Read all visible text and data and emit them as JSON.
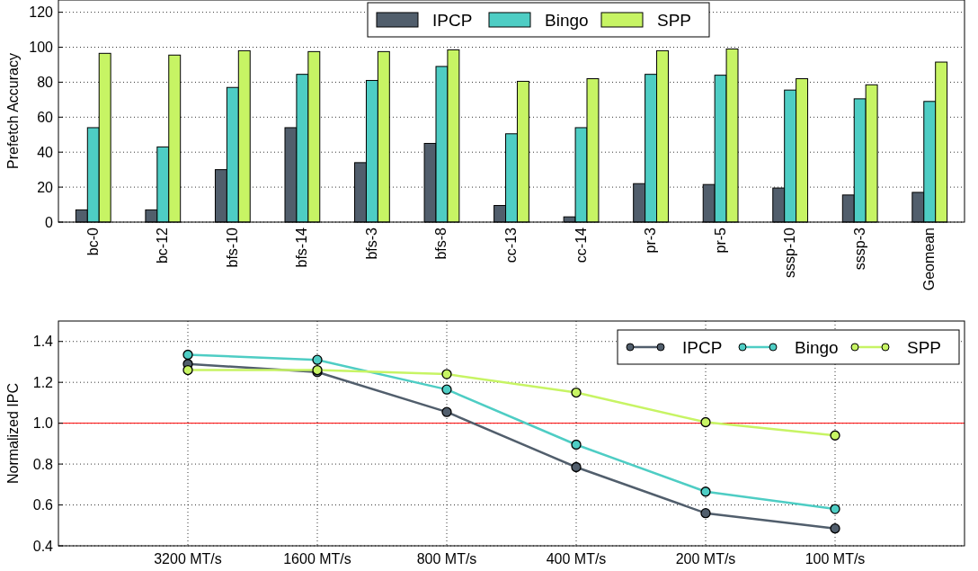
{
  "chart_data": [
    {
      "type": "bar",
      "ylabel": "Prefetch Accuracy",
      "categories": [
        "bc-0",
        "bc-12",
        "bfs-10",
        "bfs-14",
        "bfs-3",
        "bfs-8",
        "cc-13",
        "cc-14",
        "pr-3",
        "pr-5",
        "sssp-10",
        "sssp-3",
        "Geomean"
      ],
      "series": [
        {
          "name": "IPCP",
          "color": "#515e6c",
          "values": [
            7,
            7,
            30,
            54,
            34,
            45,
            9.5,
            3,
            22,
            21.5,
            19.5,
            15.5,
            17
          ]
        },
        {
          "name": "Bingo",
          "color": "#4ecdc4",
          "values": [
            54,
            43,
            77,
            84.5,
            81,
            89,
            50.5,
            54,
            84.5,
            84,
            75.5,
            70.5,
            69
          ]
        },
        {
          "name": "SPP",
          "color": "#c7f464",
          "values": [
            96.5,
            95.5,
            98,
            97.5,
            97.5,
            98.5,
            80.5,
            82,
            98,
            99,
            82,
            78.5,
            91.5
          ]
        }
      ],
      "ylim": [
        0,
        127
      ],
      "yticks": [
        0,
        20,
        40,
        60,
        80,
        100,
        120
      ],
      "grid": "y",
      "legend": "top"
    },
    {
      "type": "line",
      "ylabel": "Normalized IPC",
      "categories": [
        "3200 MT/s",
        "1600 MT/s",
        "800 MT/s",
        "400 MT/s",
        "200 MT/s",
        "100 MT/s"
      ],
      "series": [
        {
          "name": "IPCP",
          "color": "#515e6c",
          "values": [
            1.29,
            1.25,
            1.055,
            0.785,
            0.56,
            0.485
          ]
        },
        {
          "name": "Bingo",
          "color": "#4ecdc4",
          "values": [
            1.335,
            1.31,
            1.165,
            0.895,
            0.665,
            0.58
          ]
        },
        {
          "name": "SPP",
          "color": "#c7f464",
          "values": [
            1.26,
            1.26,
            1.24,
            1.15,
            1.005,
            0.94
          ]
        }
      ],
      "ylim": [
        0.4,
        1.5
      ],
      "yticks": [
        {
          "value": 0.4,
          "label": "0.4"
        },
        {
          "value": 0.6,
          "label": "0.6"
        },
        {
          "value": 0.8,
          "label": "0.8"
        },
        {
          "value": 1.0,
          "label": "1.0"
        },
        {
          "value": 1.2,
          "label": "1.2"
        },
        {
          "value": 1.4,
          "label": "1.4"
        }
      ],
      "ref_lines": [
        {
          "axis": "y",
          "value": 1.0,
          "color": "#ff0000"
        }
      ],
      "grid": true,
      "legend": "top right",
      "marker": "circle",
      "line_style": "solid"
    }
  ]
}
